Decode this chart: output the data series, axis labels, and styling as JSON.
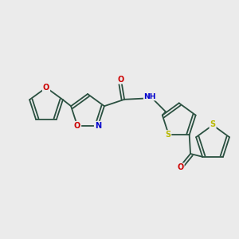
{
  "bg_color": "#ebebeb",
  "bond_color": "#2a5040",
  "atom_colors": {
    "O": "#cc0000",
    "N": "#0000cc",
    "S": "#b8b800",
    "C": "#2a5040"
  },
  "lw": 1.3,
  "fs": 7.0,
  "figsize": [
    3.0,
    3.0
  ],
  "dpi": 100
}
